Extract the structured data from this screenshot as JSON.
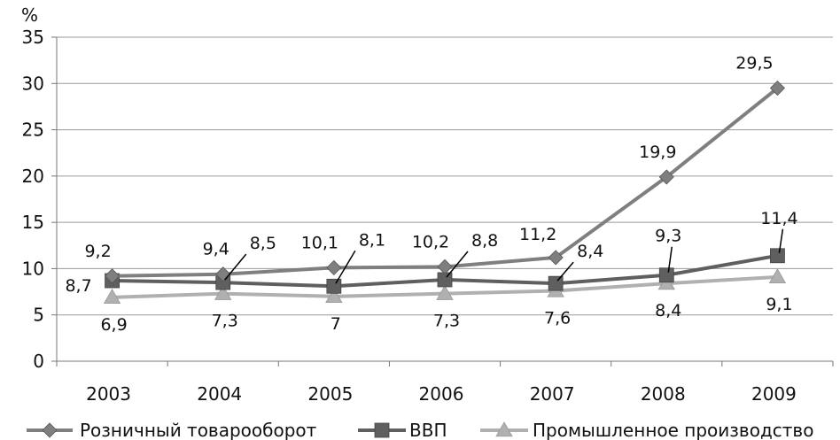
{
  "chart_data": {
    "type": "line",
    "ylabel": "%",
    "ylim": [
      0,
      35
    ],
    "yticks": [
      0,
      5,
      10,
      15,
      20,
      25,
      30,
      35
    ],
    "categories": [
      "2003",
      "2004",
      "2005",
      "2006",
      "2007",
      "2008",
      "2009"
    ],
    "grid": true,
    "legend_position": "bottom",
    "series": [
      {
        "name": "Розничный товарооборот",
        "marker": "diamond",
        "color": "#7f7f7f",
        "values": [
          9.2,
          9.4,
          10.1,
          10.2,
          11.2,
          19.9,
          29.5
        ],
        "labels": [
          "9,2",
          "9,4",
          "10,1",
          "10,2",
          "11,2",
          "19,9",
          "29,5"
        ]
      },
      {
        "name": "ВВП",
        "marker": "square",
        "color": "#5f5f5f",
        "values": [
          8.7,
          8.5,
          8.1,
          8.8,
          8.4,
          9.3,
          11.4
        ],
        "labels": [
          "8,7",
          "8,5",
          "8,1",
          "8,8",
          "8,4",
          "9,3",
          "11,4"
        ]
      },
      {
        "name": "Промышленное производство",
        "marker": "triangle",
        "color": "#b0b0b0",
        "values": [
          6.9,
          7.3,
          7.0,
          7.3,
          7.6,
          8.4,
          9.1
        ],
        "labels": [
          "6,9",
          "7,3",
          "7",
          "7,3",
          "7,6",
          "8,4",
          "9,1"
        ]
      }
    ]
  }
}
